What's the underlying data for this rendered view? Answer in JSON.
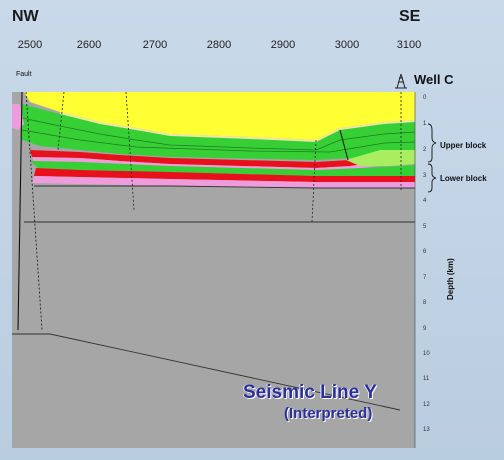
{
  "header": {
    "left_direction": "NW",
    "right_direction": "SE"
  },
  "top_axis": {
    "ticks": [
      "2500",
      "2600",
      "2700",
      "2800",
      "2900",
      "3000",
      "3100"
    ]
  },
  "labels": {
    "fault": "Fault",
    "well": "Well  C",
    "upper_block": "Upper block",
    "lower_block": "Lower block",
    "depth_axis": "Depth (km)"
  },
  "depth_axis": {
    "ticks": [
      "0",
      "1",
      "2",
      "3",
      "4",
      "5",
      "6",
      "7",
      "8",
      "9",
      "10",
      "11",
      "12",
      "13"
    ]
  },
  "title": {
    "line1": "Seismic Line Y",
    "line2": "(Interpreted)"
  },
  "colors": {
    "yellow": "#ffff33",
    "green": "#3cd23c",
    "red": "#e8101a",
    "pink": "#ef9cdc",
    "tan": "#efe8a0",
    "gray": "#a4a4a4",
    "lime": "#9cec5a"
  }
}
